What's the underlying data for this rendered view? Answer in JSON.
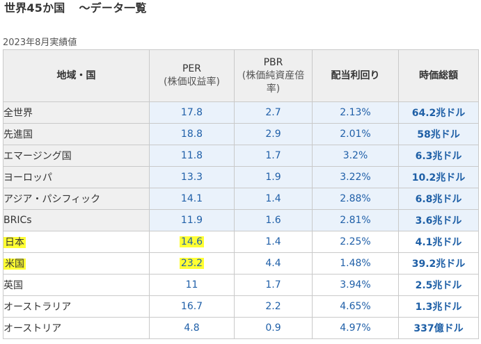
{
  "title": {
    "main": "世界45か国",
    "suffix": "〜データ一覧"
  },
  "subtitle": "2023年8月実績値",
  "table": {
    "headers": {
      "region": "地域・国",
      "per_line1": "PER",
      "per_line2": "(株価収益率)",
      "pbr_line1": "PBR",
      "pbr_line2": "(株価純資産倍",
      "pbr_line3": "率)",
      "dividend": "配当利回り",
      "market_cap": "時価総額"
    },
    "rows": [
      {
        "name": "全世界",
        "per": "17.8",
        "pbr": "2.7",
        "dividend": "2.13%",
        "market_cap": "64.2兆ドル",
        "group": "region",
        "highlight_name": false,
        "highlight_per": false
      },
      {
        "name": "先進国",
        "per": "18.8",
        "pbr": "2.9",
        "dividend": "2.01%",
        "market_cap": "58兆ドル",
        "group": "region",
        "highlight_name": false,
        "highlight_per": false
      },
      {
        "name": "エマージング国",
        "per": "11.8",
        "pbr": "1.7",
        "dividend": "3.2%",
        "market_cap": "6.3兆ドル",
        "group": "region",
        "highlight_name": false,
        "highlight_per": false
      },
      {
        "name": "ヨーロッパ",
        "per": "13.3",
        "pbr": "1.9",
        "dividend": "3.22%",
        "market_cap": "10.2兆ドル",
        "group": "region",
        "highlight_name": false,
        "highlight_per": false
      },
      {
        "name": "アジア・パシフィック",
        "per": "14.1",
        "pbr": "1.4",
        "dividend": "2.88%",
        "market_cap": "6.8兆ドル",
        "group": "region",
        "highlight_name": false,
        "highlight_per": false
      },
      {
        "name": "BRICs",
        "per": "11.9",
        "pbr": "1.6",
        "dividend": "2.81%",
        "market_cap": "3.6兆ドル",
        "group": "region",
        "highlight_name": false,
        "highlight_per": false
      },
      {
        "name": "日本",
        "per": "14.6",
        "pbr": "1.4",
        "dividend": "2.25%",
        "market_cap": "4.1兆ドル",
        "group": "country",
        "highlight_name": true,
        "highlight_per": true
      },
      {
        "name": "米国",
        "per": "23.2",
        "pbr": "4.4",
        "dividend": "1.48%",
        "market_cap": "39.2兆ドル",
        "group": "country",
        "highlight_name": true,
        "highlight_per": true
      },
      {
        "name": "英国",
        "per": "11",
        "pbr": "1.7",
        "dividend": "3.94%",
        "market_cap": "2.5兆ドル",
        "group": "country",
        "highlight_name": false,
        "highlight_per": false
      },
      {
        "name": "オーストラリア",
        "per": "16.7",
        "pbr": "2.2",
        "dividend": "4.65%",
        "market_cap": "1.3兆ドル",
        "group": "country",
        "highlight_name": false,
        "highlight_per": false
      },
      {
        "name": "オーストリア",
        "per": "4.8",
        "pbr": "0.9",
        "dividend": "4.97%",
        "market_cap": "337億ドル",
        "group": "country",
        "highlight_name": false,
        "highlight_per": false
      }
    ]
  },
  "colors": {
    "value_text": "#1f5fa8",
    "region_cell_bg": "#eaf2fb",
    "header_bg": "#efefef",
    "highlight": "#ffff33"
  }
}
